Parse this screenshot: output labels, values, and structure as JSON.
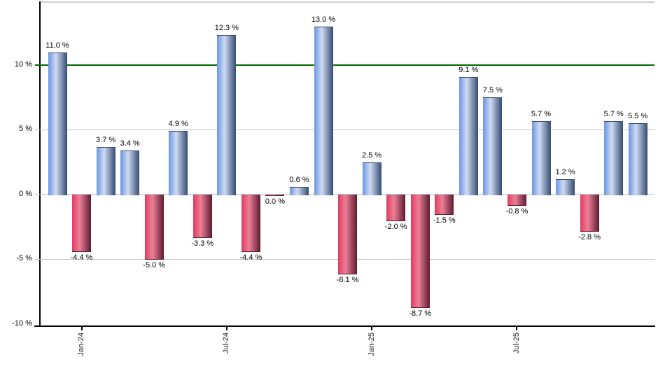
{
  "chart_data": {
    "type": "bar",
    "title": "",
    "xlabel": "",
    "ylabel": "",
    "unit": "%",
    "values": [
      11.0,
      -4.4,
      3.7,
      3.4,
      -5.0,
      4.9,
      -3.3,
      12.3,
      -4.4,
      0.0,
      0.6,
      13.0,
      -6.1,
      2.5,
      -2.0,
      -8.7,
      -1.5,
      9.1,
      7.5,
      -0.8,
      5.7,
      1.2,
      -2.8,
      5.7,
      5.5
    ],
    "data_labels": [
      "11.0 %",
      "-4.4 %",
      "3.7 %",
      "3.4 %",
      "-5.0 %",
      "4.9 %",
      "-3.3 %",
      "12.3 %",
      "-4.4 %",
      "0.0 %",
      "0.6 %",
      "13.0 %",
      "-6.1 %",
      "2.5 %",
      "-2.0 %",
      "-8.7 %",
      "-1.5 %",
      "9.1 %",
      "7.5 %",
      "-0.8 %",
      "5.7 %",
      "1.2 %",
      "-2.8 %",
      "5.7 %",
      "5.5 %"
    ],
    "x_ticks": [
      {
        "label": "Jan-24",
        "bar_index": 1
      },
      {
        "label": "Jul-24",
        "bar_index": 7
      },
      {
        "label": "Jan-25",
        "bar_index": 13
      },
      {
        "label": "Jul-25",
        "bar_index": 19
      }
    ],
    "y_ticks": [
      {
        "label": "10 %",
        "value": 10
      },
      {
        "label": "5 %",
        "value": 5
      },
      {
        "label": "0 %",
        "value": 0
      },
      {
        "label": "-5 %",
        "value": -5
      },
      {
        "label": "-10 %",
        "value": -10
      }
    ],
    "ylim": [
      -10.11,
      14.92
    ],
    "grid": true,
    "legend": "none",
    "reference_line": {
      "value": 10,
      "color": "#006A00"
    },
    "colors": {
      "positive_bar_stops": [
        "#6b95e3",
        "#cfdbf3",
        "#344b72"
      ],
      "negative_bar_stops": [
        "#e23a61",
        "#ec7f98",
        "#5e1b30"
      ],
      "gridline": "#c4c4c4",
      "plot_top_border": "#cfcfcf",
      "axis": "#000000",
      "background": "#ffffff",
      "label_text": "#000000"
    }
  }
}
